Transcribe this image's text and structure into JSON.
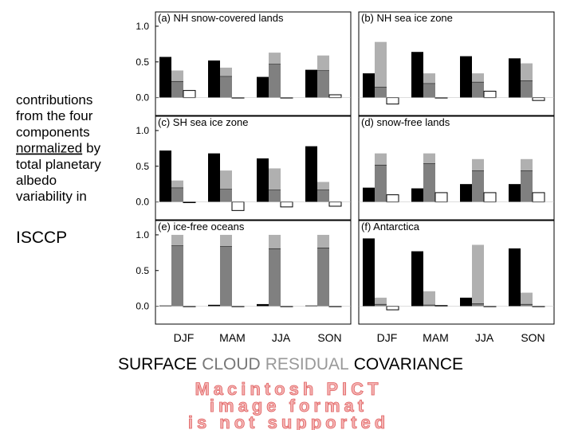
{
  "chart_data": [
    {
      "type": "bar",
      "title": "(a) NH snow-covered lands",
      "ylim": [
        -0.25,
        1.2
      ],
      "yticks": [
        {
          "value": 0,
          "label": "0.0"
        },
        0.5,
        {
          "value": 1,
          "label": "1.0"
        }
      ],
      "series": [
        {
          "color": "#000000",
          "values": [
            0.57,
            0.52,
            0.29,
            0.39
          ]
        },
        {
          "color": "#808080",
          "values": [
            0.23,
            0.3,
            0.47,
            0.38
          ]
        },
        {
          "color": "#b0b0b0",
          "values": [
            0.15,
            0.12,
            0.16,
            0.21
          ]
        },
        {
          "color": "#ffffff",
          "values": [
            0.1,
            0.0,
            0.0,
            0.04
          ]
        }
      ]
    },
    {
      "type": "bar",
      "title": "(b) NH sea ice zone",
      "ylim": [
        -0.25,
        1.2
      ],
      "series": [
        {
          "color": "#000000",
          "values": [
            0.34,
            0.64,
            0.58,
            0.55
          ]
        },
        {
          "color": "#808080",
          "values": [
            0.15,
            0.2,
            0.22,
            0.24
          ]
        },
        {
          "color": "#b0b0b0",
          "values": [
            0.63,
            0.14,
            0.12,
            0.24
          ]
        },
        {
          "color": "#ffffff",
          "values": [
            -0.09,
            0.0,
            0.09,
            -0.04
          ]
        }
      ]
    },
    {
      "type": "bar",
      "title": "(c) SH sea ice zone",
      "ylim": [
        -0.25,
        1.2
      ],
      "yticks": [
        {
          "value": 0,
          "label": "0.0"
        },
        0.5,
        {
          "value": 1,
          "label": "1.0"
        }
      ],
      "series": [
        {
          "color": "#000000",
          "values": [
            0.72,
            0.68,
            0.61,
            0.78
          ]
        },
        {
          "color": "#808080",
          "values": [
            0.2,
            0.18,
            0.17,
            0.17
          ]
        },
        {
          "color": "#b0b0b0",
          "values": [
            0.1,
            0.26,
            0.3,
            0.11
          ]
        },
        {
          "color": "#ffffff",
          "values": [
            -0.01,
            -0.12,
            -0.07,
            -0.06
          ]
        }
      ]
    },
    {
      "type": "bar",
      "title": "(d) snow-free lands",
      "ylim": [
        -0.25,
        1.2
      ],
      "series": [
        {
          "color": "#000000",
          "values": [
            0.2,
            0.19,
            0.25,
            0.25
          ]
        },
        {
          "color": "#808080",
          "values": [
            0.52,
            0.54,
            0.44,
            0.44
          ]
        },
        {
          "color": "#b0b0b0",
          "values": [
            0.16,
            0.14,
            0.16,
            0.16
          ]
        },
        {
          "color": "#ffffff",
          "values": [
            0.1,
            0.13,
            0.13,
            0.13
          ]
        }
      ]
    },
    {
      "type": "bar",
      "title": "(e) ice-free oceans",
      "ylim": [
        -0.25,
        1.2
      ],
      "yticks": [
        {
          "value": 0,
          "label": "0.0"
        },
        0.5,
        {
          "value": 1,
          "label": "1.0"
        }
      ],
      "categories": [
        "DJF",
        "MAM",
        "JJA",
        "SON"
      ],
      "series": [
        {
          "color": "#000000",
          "values": [
            0.01,
            0.02,
            0.03,
            0.01
          ]
        },
        {
          "color": "#808080",
          "values": [
            0.85,
            0.84,
            0.81,
            0.82
          ]
        },
        {
          "color": "#b0b0b0",
          "values": [
            0.15,
            0.16,
            0.19,
            0.18
          ]
        },
        {
          "color": "#ffffff",
          "values": [
            0.0,
            0.0,
            0.0,
            0.0
          ]
        }
      ]
    },
    {
      "type": "bar",
      "title": "(f) Antarctica",
      "ylim": [
        -0.25,
        1.2
      ],
      "categories": [
        "DJF",
        "MAM",
        "JJA",
        "SON"
      ],
      "series": [
        {
          "color": "#000000",
          "values": [
            0.95,
            0.77,
            0.12,
            0.81
          ]
        },
        {
          "color": "#808080",
          "values": [
            0.03,
            0.02,
            0.04,
            0.03
          ]
        },
        {
          "color": "#b0b0b0",
          "values": [
            0.09,
            0.19,
            0.82,
            0.16
          ]
        },
        {
          "color": "#ffffff",
          "values": [
            -0.05,
            0.01,
            0.0,
            0.0
          ]
        }
      ]
    }
  ],
  "caption": [
    "contributions",
    "from the four",
    "components",
    {
      "underlined": "normalized",
      "rest": "by"
    },
    "total planetary",
    "albedo",
    "variability in"
  ],
  "caption_last": "ISCCP",
  "legend": [
    {
      "name": "SURFACE",
      "color": "#000000"
    },
    {
      "name": "CLOUD",
      "color": "#777777"
    },
    {
      "name": "RESIDUAL",
      "color": "#999999"
    },
    {
      "name": "COVARIANCE",
      "color": "#000000"
    }
  ],
  "notice": [
    "Macintosh PICT",
    "image format",
    "is not supported"
  ]
}
